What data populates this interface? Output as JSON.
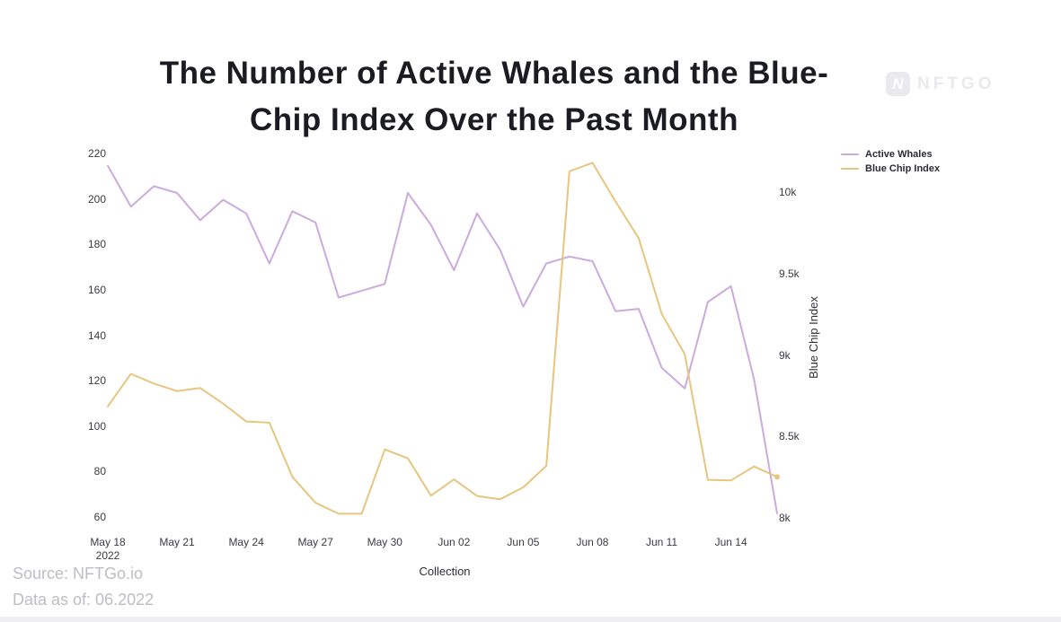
{
  "title": {
    "lines": [
      "The Number of Active Whales and the Blue-",
      "Chip Index Over the Past Month"
    ]
  },
  "watermark": {
    "icon_letter": "N",
    "brand": "NFTGO"
  },
  "footer": {
    "source": "Source: NFTGo.io",
    "data_as_of": "Data as of: 06.2022"
  },
  "chart_data": {
    "type": "line",
    "x": [
      "May 18",
      "May 19",
      "May 20",
      "May 21",
      "May 22",
      "May 23",
      "May 24",
      "May 25",
      "May 26",
      "May 27",
      "May 28",
      "May 29",
      "May 30",
      "May 31",
      "Jun 01",
      "Jun 02",
      "Jun 03",
      "Jun 04",
      "Jun 05",
      "Jun 06",
      "Jun 07",
      "Jun 08",
      "Jun 09",
      "Jun 10",
      "Jun 11",
      "Jun 12",
      "Jun 13",
      "Jun 14",
      "Jun 15",
      "Jun 16"
    ],
    "x_tick_labels": [
      "May 18",
      "May 21",
      "May 24",
      "May 27",
      "May 30",
      "Jun 02",
      "Jun 05",
      "Jun 08",
      "Jun 11",
      "Jun 14"
    ],
    "x_first_tick_year": "2022",
    "xlabel": "Collection",
    "grid": false,
    "legend_position": "top-right",
    "left_axis": {
      "ticks": [
        220,
        200,
        180,
        160,
        140,
        120,
        100,
        80,
        60
      ],
      "range": [
        60,
        220
      ]
    },
    "right_axis": {
      "label": "Blue Chip Index",
      "ticks": [
        "10k",
        "9.5k",
        "9k",
        "8.5k",
        "8k"
      ],
      "tick_values": [
        10000,
        9500,
        9000,
        8500,
        8000
      ],
      "range": [
        8000,
        10000
      ]
    },
    "series": [
      {
        "name": "Active Whales",
        "axis": "left",
        "color": "#cbaade",
        "values": [
          215,
          197,
          206,
          203,
          191,
          200,
          194,
          172,
          195,
          190,
          157,
          160,
          163,
          203,
          189,
          169,
          194,
          178,
          153,
          172,
          175,
          173,
          151,
          152,
          126,
          117,
          155,
          162,
          121,
          62
        ]
      },
      {
        "name": "Blue Chip Index",
        "axis": "right",
        "color": "#e7c57f",
        "end_dot": true,
        "values": [
          8690,
          8890,
          8830,
          8784,
          8803,
          8707,
          8597,
          8590,
          8257,
          8098,
          8031,
          8031,
          8426,
          8371,
          8142,
          8242,
          8140,
          8120,
          8193,
          8325,
          10133,
          10185,
          9947,
          9723,
          9258,
          9010,
          8239,
          8235,
          8321,
          8257
        ]
      }
    ]
  }
}
